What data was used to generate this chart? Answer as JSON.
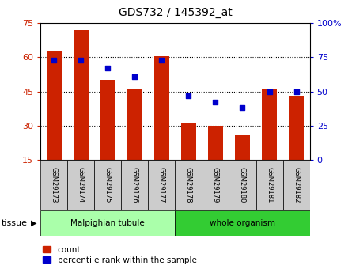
{
  "title": "GDS732 / 145392_at",
  "samples": [
    "GSM29173",
    "GSM29174",
    "GSM29175",
    "GSM29176",
    "GSM29177",
    "GSM29178",
    "GSM29179",
    "GSM29180",
    "GSM29181",
    "GSM29182"
  ],
  "counts": [
    63.0,
    72.0,
    50.0,
    46.0,
    60.5,
    31.0,
    30.0,
    26.0,
    46.0,
    43.0
  ],
  "percentiles": [
    73,
    73,
    67,
    61,
    73,
    47,
    42,
    38,
    50,
    50
  ],
  "left_ylim": [
    15,
    75
  ],
  "left_yticks": [
    15,
    30,
    45,
    60,
    75
  ],
  "right_ylim": [
    0,
    100
  ],
  "right_yticks": [
    0,
    25,
    50,
    75,
    100
  ],
  "bar_color": "#cc2200",
  "dot_color": "#0000cc",
  "tissue_groups": [
    {
      "label": "Malpighian tubule",
      "start": 0,
      "end": 5,
      "color": "#aaffaa"
    },
    {
      "label": "whole organism",
      "start": 5,
      "end": 10,
      "color": "#33cc33"
    }
  ],
  "tissue_label": "tissue",
  "legend_count_label": "count",
  "legend_pct_label": "percentile rank within the sample",
  "tick_label_color_left": "#cc2200",
  "tick_label_color_right": "#0000cc",
  "border_color": "#000000",
  "xlabel_bg": "#cccccc",
  "plot_bg": "#ffffff"
}
